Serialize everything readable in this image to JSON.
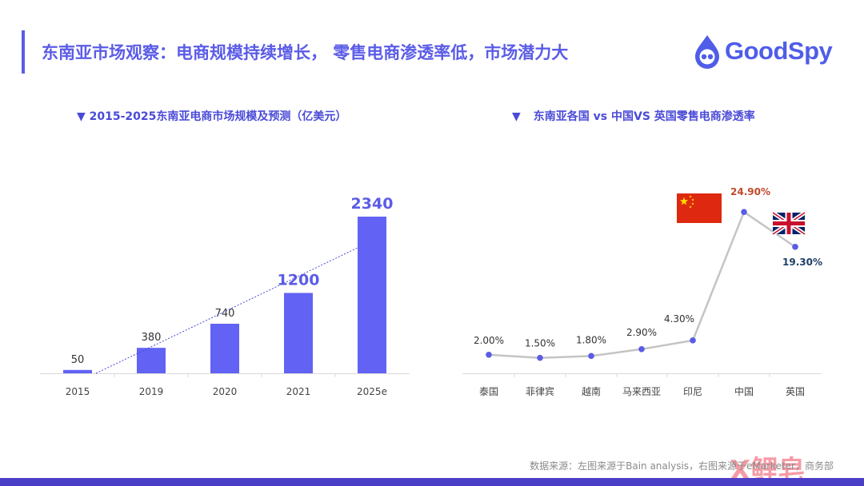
{
  "header": {
    "title": "东南亚市场观察：电商规模持续增长， 零售电商渗透率低，市场潜力大",
    "logo_text": "GoodSpy"
  },
  "chart_data": [
    {
      "type": "bar",
      "title": "▼ 2015-2025东南亚电商市场规模及预测（亿美元）",
      "categories": [
        "2015",
        "2019",
        "2020",
        "2021",
        "2025e"
      ],
      "values": [
        50,
        380,
        740,
        1200,
        2340
      ],
      "value_labels": [
        "50",
        "380",
        "740",
        "1200",
        "2340"
      ],
      "highlighted": [
        false,
        false,
        false,
        true,
        true
      ],
      "trendline": true,
      "ylim": [
        0,
        2340
      ],
      "color": "#6262f5"
    },
    {
      "type": "line",
      "title_marker": "▼",
      "title": "东南亚各国 vs 中国VS 英国零售电商渗透率",
      "categories": [
        "泰国",
        "菲律宾",
        "越南",
        "马来西亚",
        "印尼",
        "中国",
        "英国"
      ],
      "values": [
        2.0,
        1.5,
        1.8,
        2.9,
        4.3,
        24.9,
        19.3
      ],
      "value_labels": [
        "2.00%",
        "1.50%",
        "1.80%",
        "2.90%",
        "4.30%",
        "24.90%",
        "19.30%"
      ],
      "label_colors": [
        "#333333",
        "#333333",
        "#333333",
        "#333333",
        "#333333",
        "#c0492b",
        "#1f3f66"
      ],
      "flags": {
        "china": "china-flag",
        "uk": "uk-flag"
      },
      "ylim": [
        0,
        24.9
      ],
      "line_color": "#c4c4c4",
      "point_color": "#5b5ce6"
    }
  ],
  "footnote": "数据来源：左图来源于Bain analysis，右图来源于eMarketer，商务部",
  "watermark": "X鲤皂"
}
